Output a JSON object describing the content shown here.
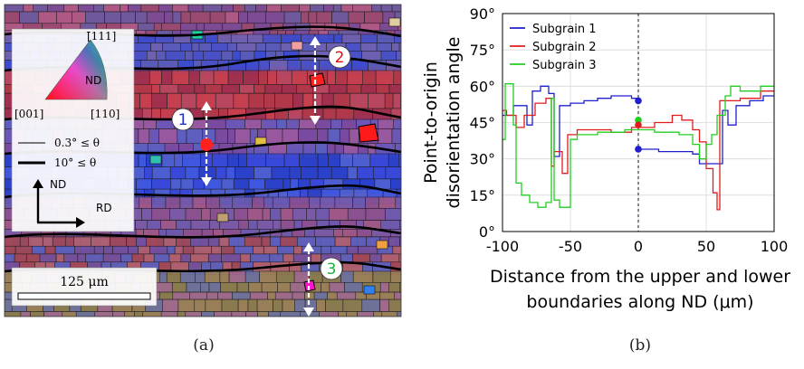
{
  "panel_a": {
    "caption": "(a)",
    "ipf_label_top": "[̄111]",
    "ipf_label_left": "[001]",
    "ipf_label_right": "[110]",
    "ipf_center": "ND",
    "legend_thin": "0.3° ≤ θ",
    "legend_thick": "10° ≤ θ",
    "axis_nd": "ND",
    "axis_rd": "RD",
    "scale_bar": "125 μm",
    "markers": [
      "1",
      "2",
      "3"
    ],
    "colors": {
      "marker_1": "#1f2fd0",
      "marker_2": "#e01010",
      "marker_3": "#20b040"
    }
  },
  "panel_b": {
    "caption": "(b)"
  },
  "chart_data": {
    "type": "line",
    "ylabel_line1": "Point-to-origin",
    "ylabel_line2": "disorientation angle",
    "xlabel_line1": "Distance from the upper and lower",
    "xlabel_line2": "boundaries along ND (μm)",
    "xlim": [
      -100,
      100
    ],
    "ylim": [
      0,
      90
    ],
    "xticks": [
      "-100",
      "-50",
      "0",
      "50",
      "100"
    ],
    "yticks": [
      "0°",
      "15°",
      "30°",
      "45°",
      "60°",
      "75°",
      "90°"
    ],
    "legend_position": "top-left",
    "series": [
      {
        "name": "Subgrain 1",
        "color": "#1f1fd0",
        "left": [
          [
            -100,
            48
          ],
          [
            -92,
            48
          ],
          [
            -92,
            52
          ],
          [
            -82,
            52
          ],
          [
            -82,
            44
          ],
          [
            -78,
            44
          ],
          [
            -78,
            58
          ],
          [
            -72,
            58
          ],
          [
            -72,
            60
          ],
          [
            -66,
            60
          ],
          [
            -66,
            57
          ],
          [
            -62,
            57
          ],
          [
            -62,
            31
          ],
          [
            -58,
            31
          ],
          [
            -58,
            52
          ],
          [
            -50,
            52
          ],
          [
            -50,
            53
          ],
          [
            -40,
            53
          ],
          [
            -40,
            54
          ],
          [
            -30,
            54
          ],
          [
            -30,
            55
          ],
          [
            -20,
            55
          ],
          [
            -20,
            56
          ],
          [
            -5,
            56
          ],
          [
            -5,
            55
          ],
          [
            0,
            55
          ]
        ],
        "right": [
          [
            0,
            34
          ],
          [
            15,
            34
          ],
          [
            15,
            33
          ],
          [
            40,
            33
          ],
          [
            40,
            32
          ],
          [
            45,
            32
          ],
          [
            45,
            28
          ],
          [
            62,
            28
          ],
          [
            62,
            50
          ],
          [
            66,
            50
          ],
          [
            66,
            44
          ],
          [
            72,
            44
          ],
          [
            72,
            52
          ],
          [
            82,
            52
          ],
          [
            82,
            54
          ],
          [
            92,
            54
          ],
          [
            92,
            56
          ],
          [
            100,
            56
          ]
        ]
      },
      {
        "name": "Subgrain 2",
        "color": "#e01c1c",
        "left": [
          [
            -100,
            50
          ],
          [
            -97,
            50
          ],
          [
            -97,
            48
          ],
          [
            -90,
            48
          ],
          [
            -90,
            43
          ],
          [
            -84,
            43
          ],
          [
            -84,
            48
          ],
          [
            -76,
            48
          ],
          [
            -76,
            53
          ],
          [
            -68,
            53
          ],
          [
            -68,
            55
          ],
          [
            -64,
            55
          ],
          [
            -64,
            27
          ],
          [
            -62,
            27
          ],
          [
            -62,
            33
          ],
          [
            -56,
            33
          ],
          [
            -56,
            24
          ],
          [
            -52,
            24
          ],
          [
            -52,
            40
          ],
          [
            -45,
            40
          ],
          [
            -45,
            42
          ],
          [
            -20,
            42
          ],
          [
            -20,
            41
          ],
          [
            -5,
            41
          ],
          [
            -5,
            43
          ],
          [
            0,
            43
          ]
        ],
        "right": [
          [
            0,
            43
          ],
          [
            12,
            43
          ],
          [
            12,
            45
          ],
          [
            25,
            45
          ],
          [
            25,
            48
          ],
          [
            32,
            48
          ],
          [
            32,
            46
          ],
          [
            40,
            46
          ],
          [
            40,
            42
          ],
          [
            45,
            42
          ],
          [
            45,
            37
          ],
          [
            50,
            37
          ],
          [
            50,
            26
          ],
          [
            55,
            26
          ],
          [
            55,
            16
          ],
          [
            58,
            16
          ],
          [
            58,
            9
          ],
          [
            60,
            9
          ],
          [
            60,
            54
          ],
          [
            75,
            54
          ],
          [
            75,
            55
          ],
          [
            90,
            55
          ],
          [
            90,
            58
          ],
          [
            100,
            58
          ]
        ]
      },
      {
        "name": "Subgrain 3",
        "color": "#20d020",
        "left": [
          [
            -100,
            38
          ],
          [
            -98,
            38
          ],
          [
            -98,
            61
          ],
          [
            -92,
            61
          ],
          [
            -92,
            44
          ],
          [
            -90,
            44
          ],
          [
            -90,
            20
          ],
          [
            -86,
            20
          ],
          [
            -86,
            15
          ],
          [
            -80,
            15
          ],
          [
            -80,
            12
          ],
          [
            -74,
            12
          ],
          [
            -74,
            10
          ],
          [
            -68,
            10
          ],
          [
            -68,
            12
          ],
          [
            -64,
            12
          ],
          [
            -64,
            55
          ],
          [
            -62,
            55
          ],
          [
            -62,
            13
          ],
          [
            -58,
            13
          ],
          [
            -58,
            10
          ],
          [
            -50,
            10
          ],
          [
            -50,
            38
          ],
          [
            -45,
            38
          ],
          [
            -45,
            40
          ],
          [
            -30,
            40
          ],
          [
            -30,
            41
          ],
          [
            -10,
            41
          ],
          [
            -10,
            42
          ],
          [
            0,
            42
          ]
        ],
        "right": [
          [
            0,
            42
          ],
          [
            12,
            42
          ],
          [
            12,
            41
          ],
          [
            30,
            41
          ],
          [
            30,
            40
          ],
          [
            40,
            40
          ],
          [
            40,
            36
          ],
          [
            45,
            36
          ],
          [
            45,
            30
          ],
          [
            50,
            30
          ],
          [
            50,
            36
          ],
          [
            54,
            36
          ],
          [
            54,
            40
          ],
          [
            58,
            40
          ],
          [
            58,
            48
          ],
          [
            64,
            48
          ],
          [
            64,
            56
          ],
          [
            68,
            56
          ],
          [
            68,
            60
          ],
          [
            75,
            60
          ],
          [
            75,
            58
          ],
          [
            90,
            58
          ],
          [
            90,
            60
          ],
          [
            100,
            60
          ]
        ]
      }
    ],
    "origin_points": [
      {
        "y": 54,
        "color": "#1f1fd0"
      },
      {
        "y": 34,
        "color": "#1f1fd0"
      },
      {
        "y": 46,
        "color": "#20d020"
      },
      {
        "y": 44,
        "color": "#e01c1c"
      }
    ]
  }
}
